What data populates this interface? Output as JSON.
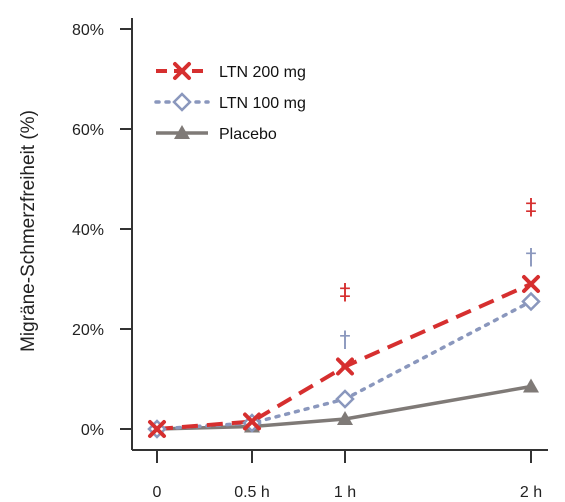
{
  "chart_data": {
    "type": "line",
    "ylabel": "Migräne-Schmerzfreiheit (%)",
    "xlabel": "",
    "x": [
      0,
      0.5,
      1,
      2
    ],
    "x_tick_labels": [
      "0",
      "0.5 h",
      "1 h",
      "2 h"
    ],
    "ylim": [
      0,
      80
    ],
    "y_ticks": [
      0,
      20,
      40,
      60,
      80
    ],
    "y_tick_labels": [
      "0%",
      "20%",
      "40%",
      "60%",
      "80%"
    ],
    "grid": false,
    "legend_position": "top-left",
    "series": [
      {
        "name": "LTN 200 mg",
        "values": [
          0,
          1.5,
          12.5,
          29
        ],
        "color": "#d62f2f",
        "style": "dashed",
        "marker": "x"
      },
      {
        "name": "LTN 100 mg",
        "values": [
          0,
          1.2,
          6,
          25.5
        ],
        "color": "#8a97bd",
        "style": "dotted",
        "marker": "diamond"
      },
      {
        "name": "Placebo",
        "values": [
          0,
          0.5,
          2,
          8.5
        ],
        "color": "#7f7a77",
        "style": "solid",
        "marker": "triangle"
      }
    ],
    "annotations": [
      {
        "text": "‡",
        "x": 1,
        "y": 27.5,
        "color": "#d62f2f"
      },
      {
        "text": "†",
        "x": 1,
        "y": 18,
        "color": "#8a97bd"
      },
      {
        "text": "‡",
        "x": 2,
        "y": 44.5,
        "color": "#d62f2f"
      },
      {
        "text": "†",
        "x": 2,
        "y": 34.5,
        "color": "#8a97bd"
      }
    ]
  }
}
